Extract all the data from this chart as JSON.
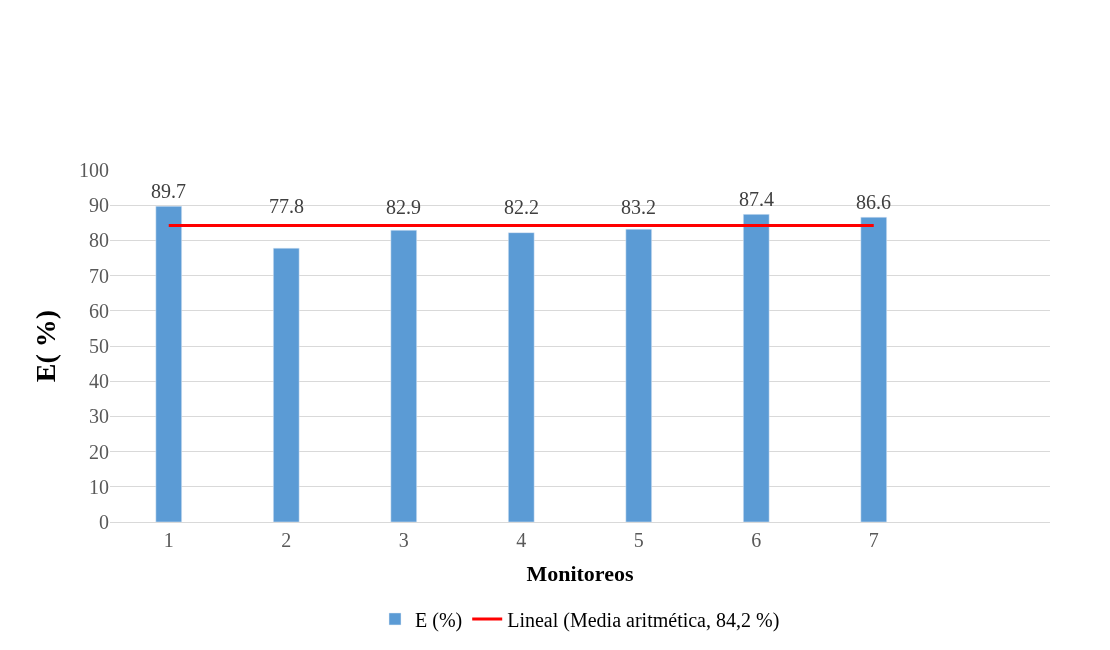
{
  "chart_data": {
    "type": "bar",
    "xlabel": "Monitoreos",
    "ylabel": "E( %)",
    "categories": [
      "1",
      "2",
      "3",
      "4",
      "5",
      "6",
      "7",
      null
    ],
    "series": [
      {
        "name": "E (%)",
        "color": "#5b9bd5",
        "values": [
          89.7,
          77.8,
          82.9,
          82.2,
          83.2,
          87.4,
          86.6,
          null
        ],
        "value_labels": [
          "89.7",
          "77.8",
          "82.9",
          "82.2",
          "83.2",
          "87.4",
          "86.6",
          null
        ]
      },
      {
        "name": "Lineal (Media aritmética, 84,2 %)",
        "type": "line",
        "color": "#ff0000",
        "values": [
          84.2,
          84.2,
          84.2,
          84.2,
          84.2,
          84.2,
          84.2,
          null
        ]
      }
    ],
    "ylim": [
      0,
      100
    ],
    "yticks": [
      0,
      10,
      20,
      30,
      40,
      50,
      60,
      70,
      80,
      90,
      100
    ],
    "grid": "y",
    "legend": "bottom",
    "marker": "none"
  }
}
